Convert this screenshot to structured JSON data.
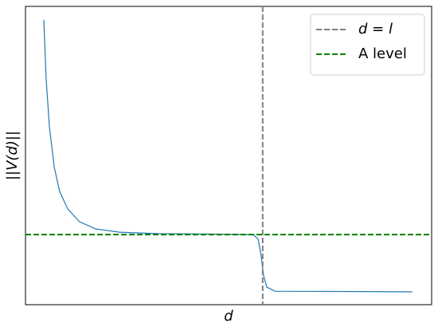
{
  "chart_data": {
    "type": "line",
    "xlabel": "d",
    "ylabel": "||V(d)||",
    "xlim": [
      0,
      10
    ],
    "ylim": [
      0,
      10
    ],
    "x": [
      0.45,
      0.51,
      0.59,
      0.71,
      0.84,
      1.04,
      1.33,
      1.73,
      2.31,
      3.29,
      4.27,
      5.61,
      5.73,
      5.8,
      5.86,
      5.94,
      6.14,
      9.53
    ],
    "values": [
      9.55,
      7.54,
      5.94,
      4.6,
      3.8,
      3.21,
      2.78,
      2.54,
      2.43,
      2.38,
      2.37,
      2.35,
      2.19,
      1.66,
      0.99,
      0.59,
      0.45,
      0.43
    ],
    "color": "#1f77b4",
    "vlines": [
      {
        "name": "d = l",
        "x": 5.84,
        "color": "#808080"
      }
    ],
    "hlines": [
      {
        "name": "A level",
        "y": 2.35,
        "color": "#008000"
      }
    ],
    "legend": "upper right"
  }
}
